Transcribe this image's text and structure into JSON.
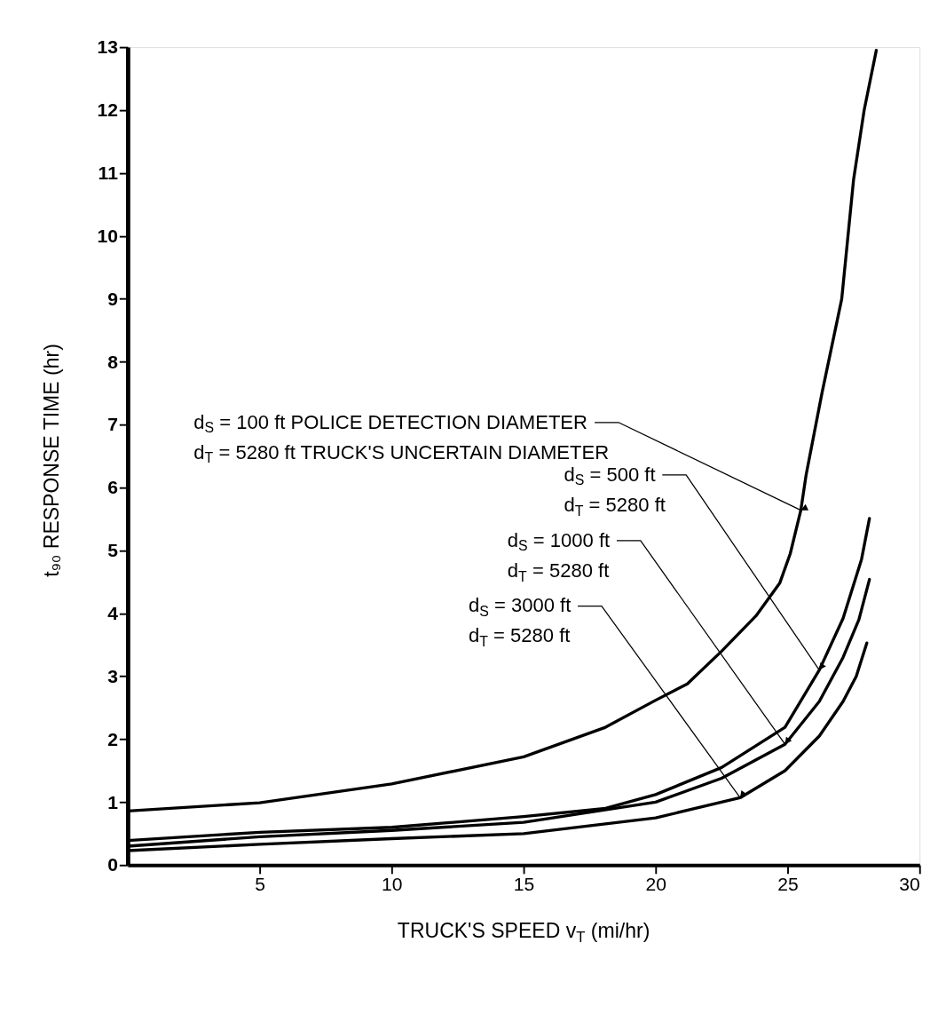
{
  "chart_data": {
    "type": "line",
    "xlabel": "TRUCK'S SPEED v$_{T}$ (mi/hr)",
    "ylabel": "t₉₀ RESPONSE TIME (hr)",
    "xlim": [
      0,
      30
    ],
    "xticks": [
      5,
      10,
      15,
      20,
      25,
      30
    ],
    "ylim": [
      0,
      13
    ],
    "yticks": [
      0,
      1,
      2,
      3,
      4,
      5,
      6,
      7,
      8,
      9,
      10,
      11,
      12,
      13
    ],
    "grid": false,
    "legend": false,
    "marker": "none",
    "line_style": "solid",
    "series": [
      {
        "color": "#000000",
        "x": [
          0,
          5,
          10,
          15,
          18.1,
          20,
          21.2,
          22.5,
          23.8,
          24.7,
          25.1,
          25.5,
          25.7,
          26.3,
          27.05,
          27.5,
          27.9,
          28.36
        ],
        "values": [
          0.86,
          0.99,
          1.29,
          1.72,
          2.19,
          2.62,
          2.88,
          3.4,
          3.96,
          4.48,
          4.95,
          5.64,
          6.2,
          7.5,
          9.0,
          10.9,
          12.0,
          12.95
        ]
      },
      {
        "color": "#000000",
        "x": [
          0,
          5,
          10,
          15,
          18.1,
          20,
          22.5,
          24.9,
          26.2,
          27.1,
          27.8,
          28.1
        ],
        "values": [
          0.39,
          0.52,
          0.6,
          0.77,
          0.9,
          1.12,
          1.55,
          2.19,
          3.1,
          3.92,
          4.86,
          5.51
        ]
      },
      {
        "color": "#000000",
        "x": [
          0,
          5,
          10,
          15,
          20,
          22.5,
          24.9,
          26.2,
          27.1,
          27.7,
          28.1
        ],
        "values": [
          0.3,
          0.45,
          0.55,
          0.68,
          1.0,
          1.38,
          1.92,
          2.6,
          3.3,
          3.9,
          4.54
        ]
      },
      {
        "color": "#000000",
        "x": [
          0,
          5,
          10,
          15,
          20,
          23.2,
          24.9,
          26.2,
          27.1,
          27.6,
          28.0
        ],
        "values": [
          0.23,
          0.33,
          0.42,
          0.5,
          0.75,
          1.07,
          1.5,
          2.05,
          2.6,
          3.0,
          3.53
        ]
      }
    ],
    "annotations": [
      {
        "text": "d$_{S}$ = 100 ft POLICE DETECTION DIAMETER\nd$_{T}$ = 5280 ft TRUCK'S UNCERTAIN DIAMETER",
        "x": 25.5,
        "y": 5.64
      },
      {
        "text": "d$_{S}$ = 500 ft\nd$_{T}$ = 5280 ft",
        "x": 26.2,
        "y": 3.1
      },
      {
        "text": "d$_{S}$ = 1000 ft\nd$_{T}$ = 5280 ft",
        "x": 24.9,
        "y": 1.92
      },
      {
        "text": "d$_{S}$ = 3000 ft\nd$_{T}$ = 5280 ft",
        "x": 23.2,
        "y": 1.07
      }
    ]
  }
}
